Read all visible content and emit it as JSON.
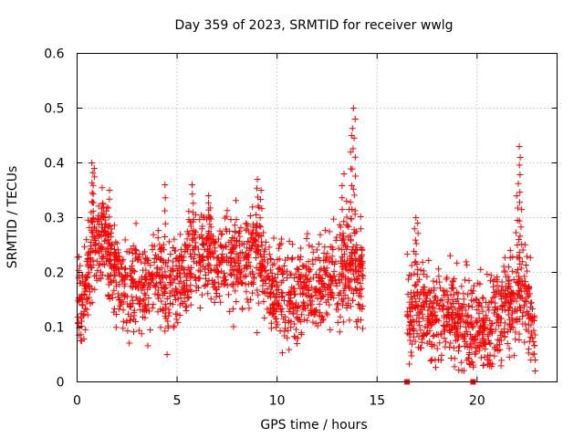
{
  "chart_data": {
    "type": "scatter",
    "title": "Day 359 of 2023, SRMTID for receiver wwlg",
    "xlabel": "GPS time / hours",
    "ylabel": "SRMTID / TECUs",
    "xlim": [
      0,
      24
    ],
    "ylim": [
      0,
      0.6
    ],
    "x_ticks": [
      0,
      5,
      10,
      15,
      20
    ],
    "x_tick_labels": [
      "0",
      "5",
      "10",
      "15",
      "20"
    ],
    "y_ticks": [
      0,
      0.1,
      0.2,
      0.3,
      0.4,
      0.5,
      0.6
    ],
    "y_tick_labels": [
      "0",
      "0.1",
      "0.2",
      "0.3",
      "0.4",
      "0.5",
      "0.6"
    ],
    "grid": true,
    "marker": "plus",
    "color": "#ff0000",
    "series": [
      {
        "name": "SRMTID",
        "profile": [
          [
            0.0,
            0.15
          ],
          [
            0.3,
            0.14
          ],
          [
            0.5,
            0.18
          ],
          [
            0.8,
            0.27
          ],
          [
            1.0,
            0.25
          ],
          [
            1.3,
            0.28
          ],
          [
            1.6,
            0.22
          ],
          [
            2.0,
            0.2
          ],
          [
            2.5,
            0.16
          ],
          [
            3.0,
            0.18
          ],
          [
            3.5,
            0.16
          ],
          [
            4.0,
            0.2
          ],
          [
            4.4,
            0.17
          ],
          [
            4.8,
            0.18
          ],
          [
            5.2,
            0.19
          ],
          [
            5.6,
            0.21
          ],
          [
            6.0,
            0.24
          ],
          [
            6.5,
            0.24
          ],
          [
            7.0,
            0.22
          ],
          [
            7.5,
            0.23
          ],
          [
            8.0,
            0.22
          ],
          [
            8.5,
            0.21
          ],
          [
            9.0,
            0.24
          ],
          [
            9.5,
            0.18
          ],
          [
            10.0,
            0.17
          ],
          [
            10.5,
            0.16
          ],
          [
            11.0,
            0.16
          ],
          [
            11.5,
            0.17
          ],
          [
            12.0,
            0.17
          ],
          [
            12.5,
            0.19
          ],
          [
            13.0,
            0.2
          ],
          [
            13.5,
            0.21
          ],
          [
            14.0,
            0.2
          ],
          [
            14.3,
            0.19
          ],
          [
            16.5,
            0.12
          ],
          [
            17.0,
            0.14
          ],
          [
            17.5,
            0.13
          ],
          [
            18.0,
            0.12
          ],
          [
            18.5,
            0.13
          ],
          [
            19.0,
            0.12
          ],
          [
            19.5,
            0.1
          ],
          [
            20.0,
            0.09
          ],
          [
            20.5,
            0.1
          ],
          [
            21.0,
            0.12
          ],
          [
            21.5,
            0.14
          ],
          [
            22.0,
            0.16
          ],
          [
            22.5,
            0.15
          ],
          [
            22.9,
            0.08
          ]
        ],
        "gap": [
          14.3,
          16.5
        ],
        "spikes": [
          [
            0.75,
            0.4
          ],
          [
            0.85,
            0.39
          ],
          [
            1.6,
            0.35
          ],
          [
            4.4,
            0.36
          ],
          [
            5.8,
            0.36
          ],
          [
            6.6,
            0.34
          ],
          [
            9.0,
            0.37
          ],
          [
            9.2,
            0.35
          ],
          [
            13.3,
            0.38
          ],
          [
            13.7,
            0.45
          ],
          [
            13.8,
            0.5
          ],
          [
            13.9,
            0.48
          ],
          [
            16.9,
            0.3
          ],
          [
            17.0,
            0.29
          ],
          [
            22.1,
            0.43
          ],
          [
            22.2,
            0.41
          ],
          [
            22.0,
            0.34
          ]
        ],
        "dips": [
          [
            4.5,
            0.05
          ],
          [
            9.0,
            0.09
          ],
          [
            11.0,
            0.07
          ],
          [
            18.2,
            0.04
          ],
          [
            20.3,
            0.03
          ],
          [
            20.6,
            0.04
          ],
          [
            22.9,
            0.02
          ],
          [
            22.9,
            0.04
          ]
        ],
        "zero_markers": [
          [
            16.5,
            0.0
          ],
          [
            19.8,
            0.0
          ]
        ]
      }
    ]
  }
}
